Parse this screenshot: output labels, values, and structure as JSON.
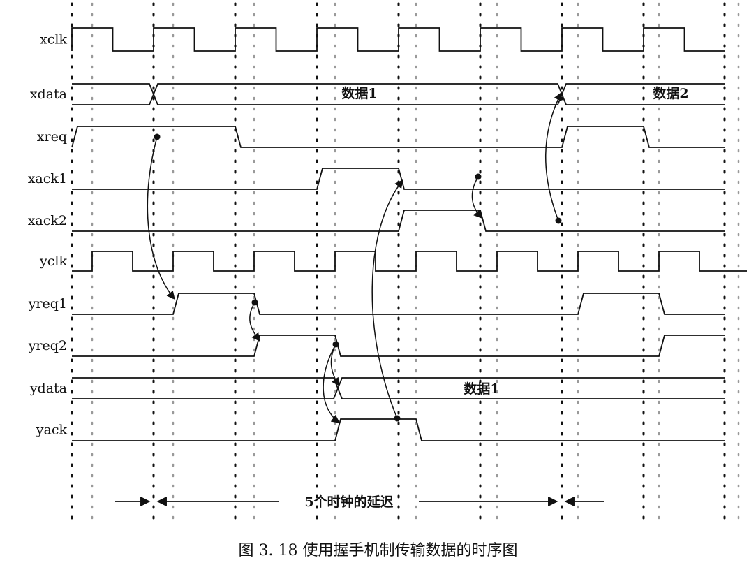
{
  "signals": [
    {
      "id": "xclk",
      "label": "xclk",
      "kind": "clock",
      "clock": "x"
    },
    {
      "id": "xdata",
      "label": "xdata",
      "kind": "bus",
      "transitions": [
        1,
        6
      ],
      "values": [
        "",
        "数据1",
        "数据2"
      ]
    },
    {
      "id": "xreq",
      "label": "xreq",
      "kind": "wave",
      "levels": [
        0,
        1,
        1,
        0,
        0,
        0,
        0,
        1,
        0,
        0
      ]
    },
    {
      "id": "xack1",
      "label": "xack1",
      "kind": "wave",
      "levels": [
        0,
        0,
        0,
        0,
        1,
        0,
        0,
        0,
        0,
        0
      ]
    },
    {
      "id": "xack2",
      "label": "xack2",
      "kind": "wave",
      "levels": [
        0,
        0,
        0,
        0,
        0,
        1,
        0,
        0,
        0,
        0
      ]
    },
    {
      "id": "yclk",
      "label": "yclk",
      "kind": "clock",
      "clock": "y"
    },
    {
      "id": "yreq1",
      "label": "yreq1",
      "kind": "ywave",
      "levels": [
        0,
        0,
        1,
        0,
        0,
        0,
        0,
        1,
        0
      ]
    },
    {
      "id": "yreq2",
      "label": "yreq2",
      "kind": "ywave",
      "levels": [
        0,
        0,
        0,
        1,
        0,
        0,
        0,
        0,
        1
      ]
    },
    {
      "id": "ydata",
      "label": "ydata",
      "kind": "bus",
      "transitions": [
        3
      ],
      "values": [
        "",
        "数据1"
      ]
    },
    {
      "id": "yack",
      "label": "yack",
      "kind": "ywave",
      "levels": [
        0,
        0,
        0,
        0,
        1,
        0,
        0,
        0,
        0
      ]
    }
  ],
  "delay_label": "5个时钟的延迟",
  "caption": "图 3. 18    使用握手机制传输数据的时序图",
  "colors": {
    "line": "#111111",
    "grid_x": "#111111",
    "grid_y": "#9a9a9a"
  }
}
